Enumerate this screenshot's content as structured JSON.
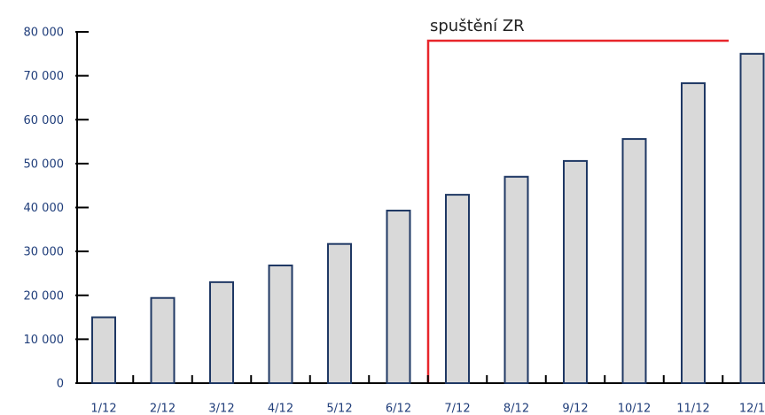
{
  "chart_data": {
    "type": "bar",
    "categories": [
      "1/12",
      "2/12",
      "3/12",
      "4/12",
      "5/12",
      "6/12",
      "7/12",
      "8/12",
      "9/12",
      "10/12",
      "11/12",
      "12/1"
    ],
    "values": [
      15000,
      19400,
      23000,
      26800,
      31700,
      39300,
      42900,
      47000,
      50600,
      55600,
      68300,
      75000
    ],
    "color": "#d9d9d9",
    "edge_color": "#1f3864",
    "ylim": [
      0,
      80000
    ],
    "yticks": [
      0,
      {
        "value": 10000,
        "label": "10 000"
      },
      {
        "value": 20000,
        "label": "20 000"
      },
      {
        "value": 30000,
        "label": "30 000"
      },
      {
        "value": 40000,
        "label": "40 000"
      },
      {
        "value": 50000,
        "label": "50 000"
      },
      {
        "value": 60000,
        "label": "60 000"
      },
      {
        "value": 70000,
        "label": "70 000"
      },
      {
        "value": 80000,
        "label": "80 000"
      }
    ],
    "grid": false,
    "annotation": "spuštění ZR"
  }
}
